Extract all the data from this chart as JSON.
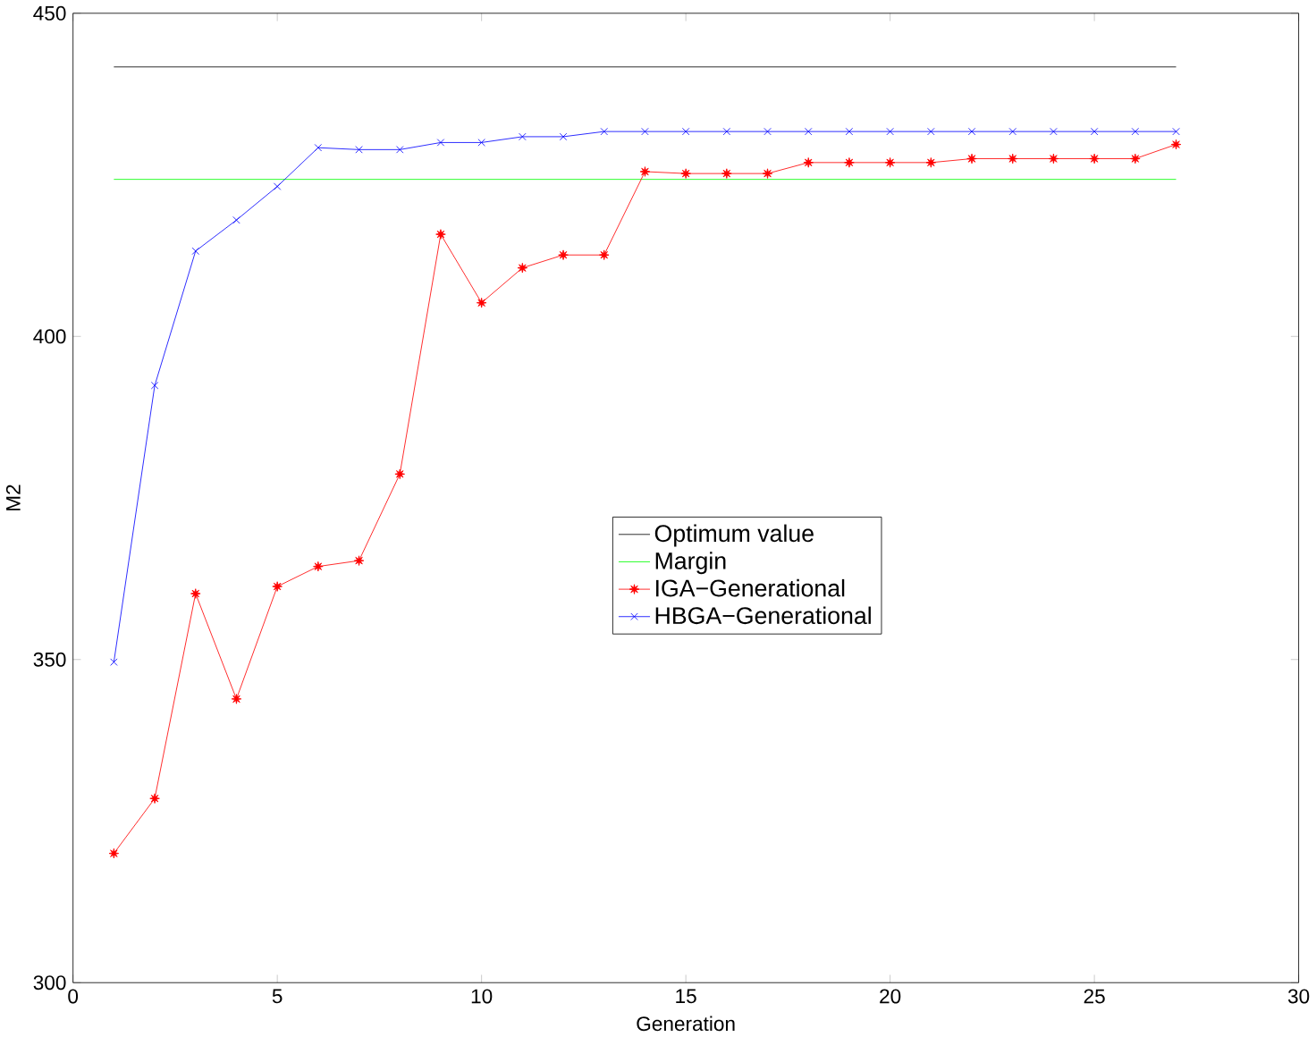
{
  "chart_data": {
    "type": "line",
    "xlabel": "Generation",
    "ylabel": "M2",
    "xlim": [
      0,
      30
    ],
    "ylim": [
      300,
      450
    ],
    "xticks": [
      0,
      5,
      10,
      15,
      20,
      25,
      30
    ],
    "yticks": [
      300,
      350,
      400,
      450
    ],
    "grid": false,
    "legend": "center",
    "x": [
      1,
      2,
      3,
      4,
      5,
      6,
      7,
      8,
      9,
      10,
      11,
      12,
      13,
      14,
      15,
      16,
      17,
      18,
      19,
      20,
      21,
      22,
      23,
      24,
      25,
      26,
      27
    ],
    "series": [
      {
        "name": "Optimum value",
        "color": "#000000",
        "values": [
          441.7,
          441.7,
          441.7,
          441.7,
          441.7,
          441.7,
          441.7,
          441.7,
          441.7,
          441.7,
          441.7,
          441.7,
          441.7,
          441.7,
          441.7,
          441.7,
          441.7,
          441.7,
          441.7,
          441.7,
          441.7,
          441.7,
          441.7,
          441.7,
          441.7,
          441.7,
          441.7
        ],
        "marker": "none"
      },
      {
        "name": "Margin",
        "color": "#00ff00",
        "values": [
          424.3,
          424.3,
          424.3,
          424.3,
          424.3,
          424.3,
          424.3,
          424.3,
          424.3,
          424.3,
          424.3,
          424.3,
          424.3,
          424.3,
          424.3,
          424.3,
          424.3,
          424.3,
          424.3,
          424.3,
          424.3,
          424.3,
          424.3,
          424.3,
          424.3,
          424.3,
          424.3
        ],
        "marker": "none"
      },
      {
        "name": "IGA−Generational",
        "color": "#ff0000",
        "marker": "star",
        "values": [
          320,
          328.5,
          360.2,
          343.9,
          361.3,
          364.4,
          365.3,
          378.7,
          415.8,
          405.2,
          410.6,
          412.6,
          412.6,
          425.5,
          425.2,
          425.2,
          425.2,
          426.9,
          426.9,
          426.9,
          426.9,
          427.5,
          427.5,
          427.5,
          427.5,
          427.5,
          429.7
        ]
      },
      {
        "name": "HBGA−Generational",
        "color": "#0000ff",
        "marker": "cross",
        "values": [
          349.6,
          392.4,
          413.2,
          418,
          423.2,
          429.2,
          428.9,
          428.9,
          430,
          430,
          430.9,
          430.9,
          431.7,
          431.7,
          431.7,
          431.7,
          431.7,
          431.7,
          431.7,
          431.7,
          431.7,
          431.7,
          431.7,
          431.7,
          431.7,
          431.7,
          431.7
        ]
      }
    ]
  }
}
